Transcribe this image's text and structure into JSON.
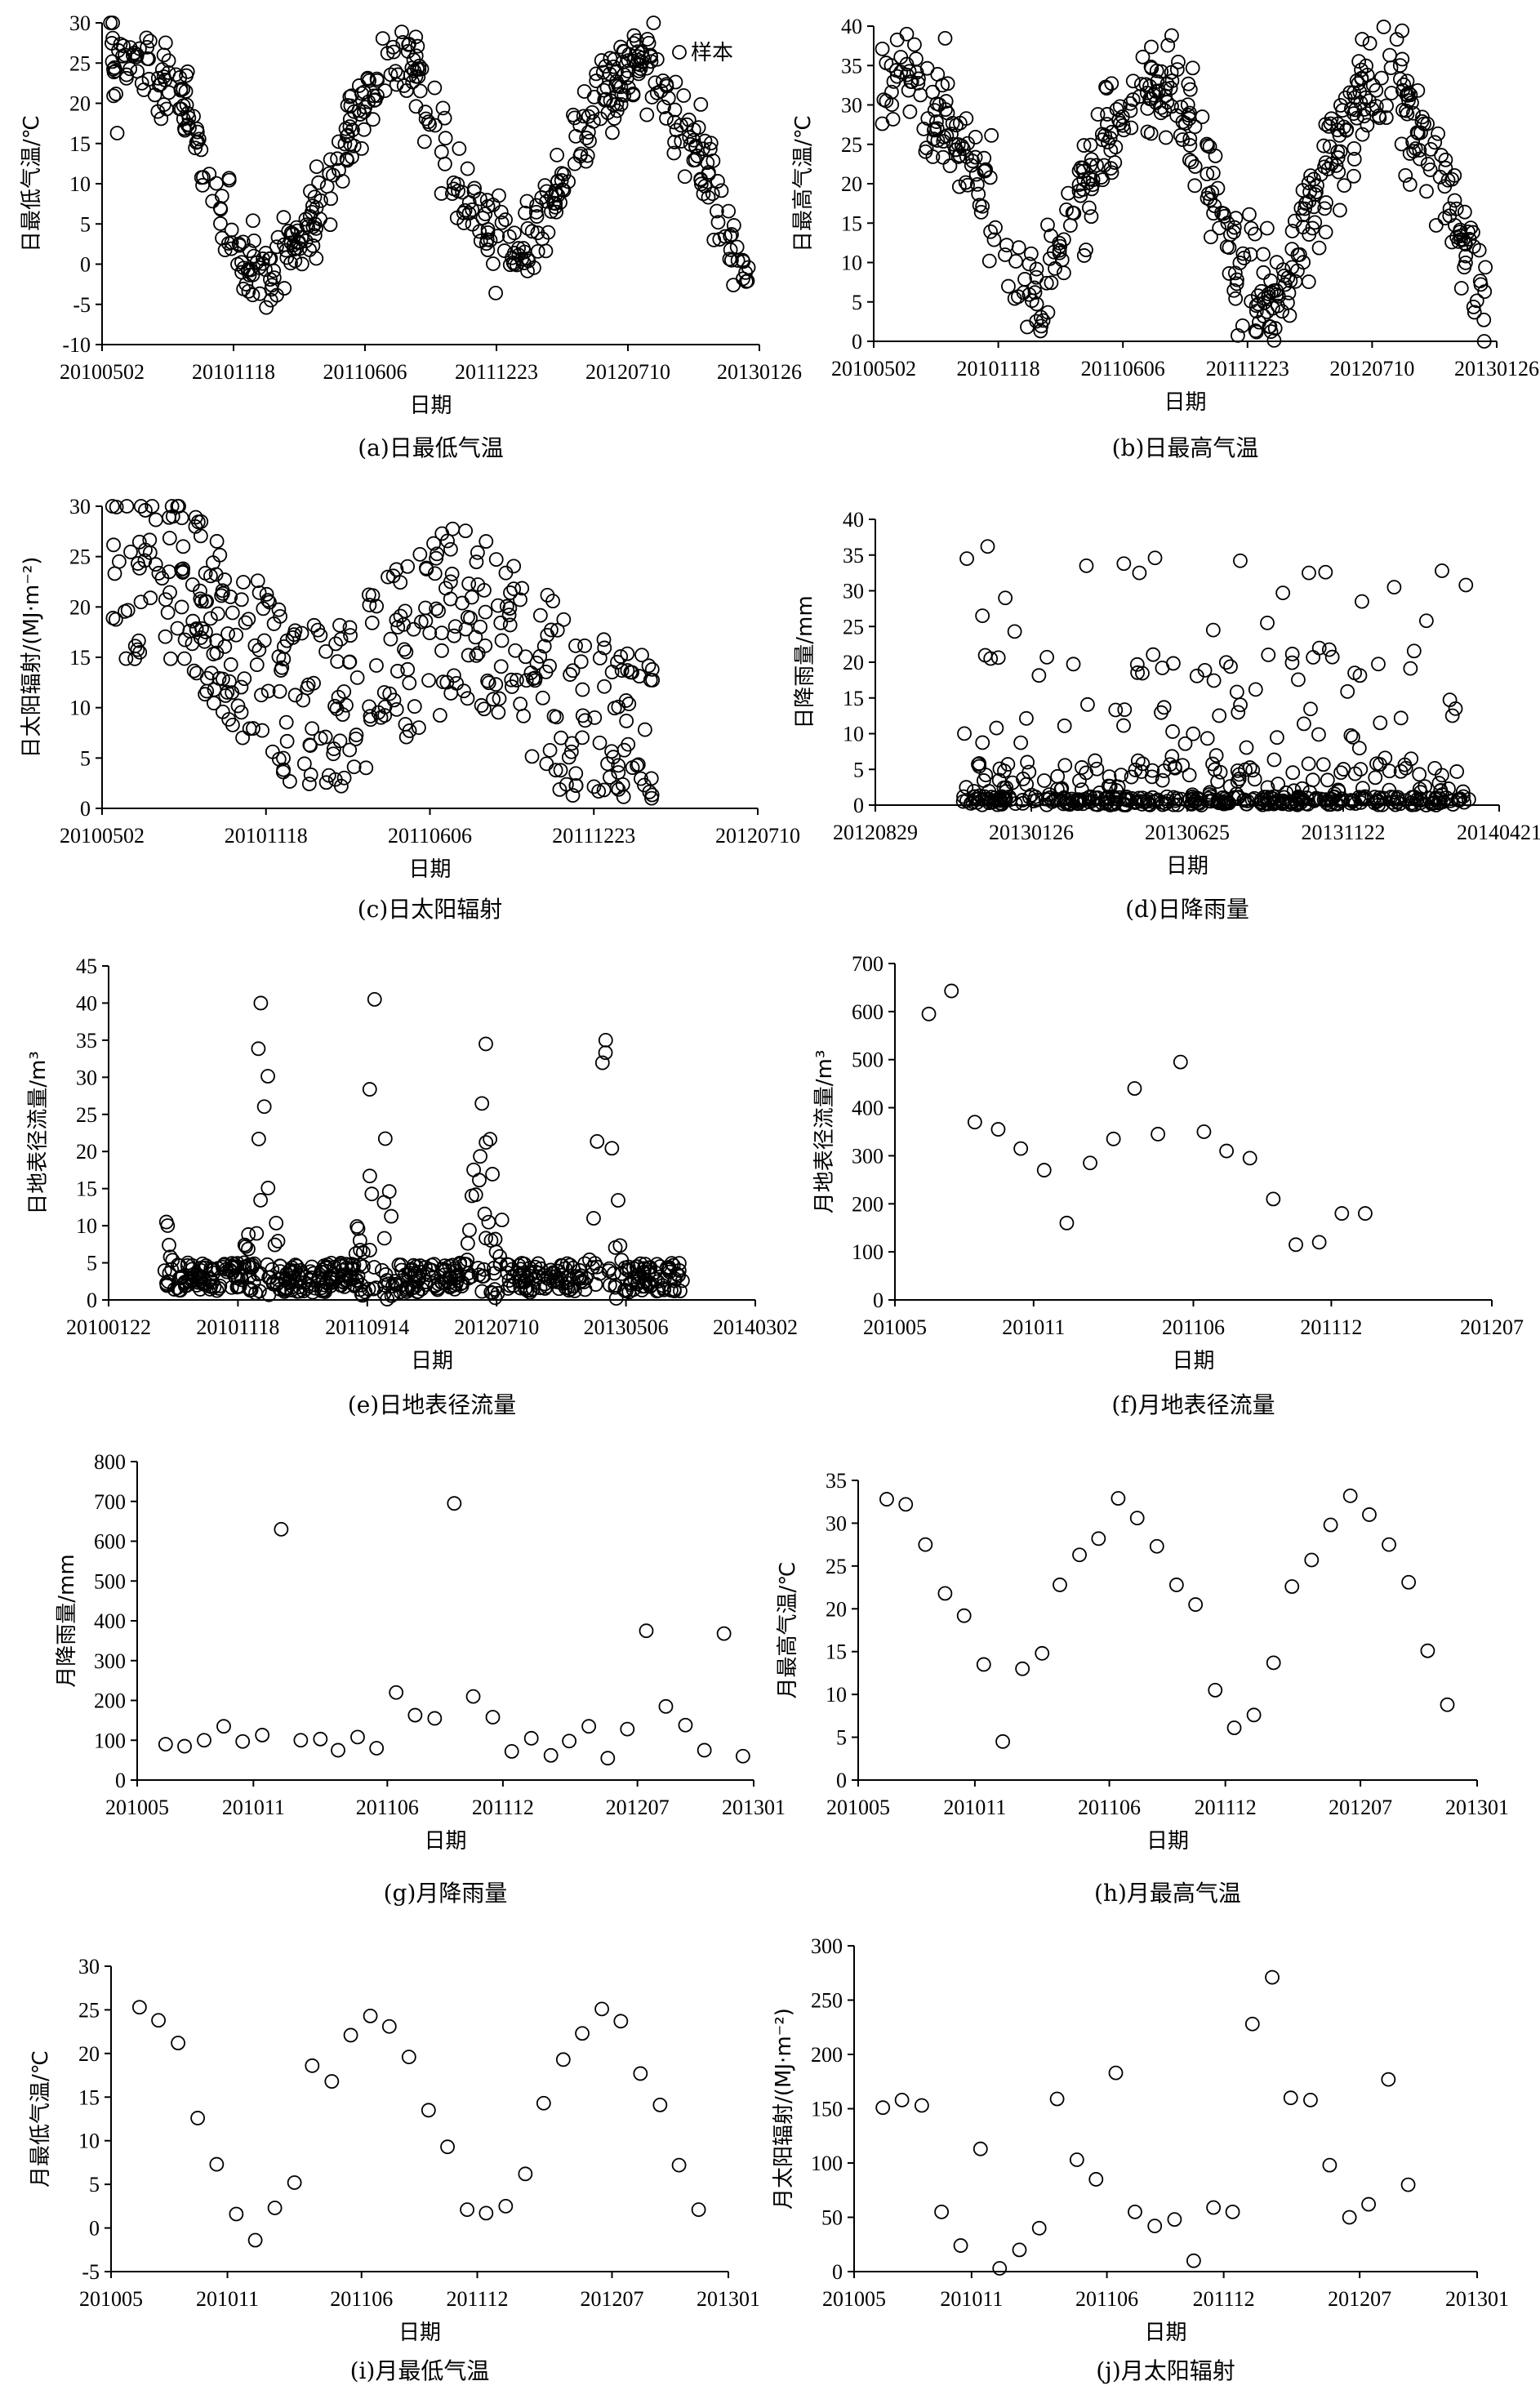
{
  "figure": {
    "panels": [
      {
        "id": "a",
        "caption": "(a)日最低气温",
        "ylabel": "日最低气温/℃",
        "xlabel": "日期",
        "ylim": [
          -10,
          30
        ],
        "yticks": [
          -10,
          -5,
          0,
          5,
          10,
          15,
          20,
          25,
          30
        ],
        "xticks": [
          "20100502",
          "20101118",
          "20110606",
          "20111223",
          "20120710",
          "20130126"
        ],
        "legend": "样本"
      },
      {
        "id": "b",
        "caption": "(b)日最高气温",
        "ylabel": "日最高气温/℃",
        "xlabel": "日期",
        "ylim": [
          0,
          40
        ],
        "yticks": [
          0,
          5,
          10,
          15,
          20,
          25,
          30,
          35,
          40
        ],
        "xticks": [
          "20100502",
          "20101118",
          "20110606",
          "20111223",
          "20120710",
          "20130126"
        ]
      },
      {
        "id": "c",
        "caption": "(c)日太阳辐射",
        "ylabel": "日太阳辐射/(MJ·m⁻²)",
        "xlabel": "日期",
        "ylim": [
          0,
          30
        ],
        "yticks": [
          0,
          5,
          10,
          15,
          20,
          25,
          30
        ],
        "xticks": [
          "20100502",
          "20101118",
          "20110606",
          "20111223",
          "20120710"
        ]
      },
      {
        "id": "d",
        "caption": "(d)日降雨量",
        "ylabel": "日降雨量/mm",
        "xlabel": "日期",
        "ylim": [
          0,
          40
        ],
        "yticks": [
          0,
          5,
          10,
          15,
          20,
          25,
          30,
          35,
          40
        ],
        "xticks": [
          "20120829",
          "20130126",
          "20130625",
          "20131122",
          "20140421"
        ]
      },
      {
        "id": "e",
        "caption": "(e)日地表径流量",
        "ylabel": "日地表径流量/m³",
        "xlabel": "日期",
        "ylim": [
          0,
          45
        ],
        "yticks": [
          0,
          5,
          10,
          15,
          20,
          25,
          30,
          35,
          40,
          45
        ],
        "xticks": [
          "20100122",
          "20101118",
          "20110914",
          "20120710",
          "20130506",
          "20140302"
        ]
      },
      {
        "id": "f",
        "caption": "(f)月地表径流量",
        "ylabel": "月地表径流量/m³",
        "xlabel": "日期",
        "ylim": [
          0,
          700
        ],
        "yticks": [
          0,
          100,
          200,
          300,
          400,
          500,
          600,
          700
        ],
        "xticks": [
          "201005",
          "201011",
          "201106",
          "201112",
          "201207"
        ]
      },
      {
        "id": "g",
        "caption": "(g)月降雨量",
        "ylabel": "月降雨量/mm",
        "xlabel": "日期",
        "ylim": [
          0,
          800
        ],
        "yticks": [
          0,
          100,
          200,
          300,
          400,
          500,
          600,
          700,
          800
        ],
        "xticks": [
          "201005",
          "201011",
          "201106",
          "201112",
          "201207",
          "201301"
        ]
      },
      {
        "id": "h",
        "caption": "(h)月最高气温",
        "ylabel": "月最高气温/℃",
        "xlabel": "日期",
        "ylim": [
          0,
          35
        ],
        "yticks": [
          0,
          5,
          10,
          15,
          20,
          25,
          30,
          35
        ],
        "xticks": [
          "201005",
          "201011",
          "201106",
          "201112",
          "201207",
          "201301"
        ]
      },
      {
        "id": "i",
        "caption": "(i)月最低气温",
        "ylabel": "月最低气温/℃",
        "xlabel": "日期",
        "ylim": [
          -5,
          30
        ],
        "yticks": [
          -5,
          0,
          5,
          10,
          15,
          20,
          25,
          30
        ],
        "xticks": [
          "201005",
          "201011",
          "201106",
          "201112",
          "201207",
          "201301"
        ]
      },
      {
        "id": "j",
        "caption": "(j)月太阳辐射",
        "ylabel": "月太阳辐射/(MJ·m⁻²)",
        "xlabel": "日期",
        "ylim": [
          0,
          300
        ],
        "yticks": [
          0,
          50,
          100,
          150,
          200,
          250,
          300
        ],
        "xticks": [
          "201005",
          "201011",
          "201106",
          "201112",
          "201207",
          "201301"
        ]
      }
    ]
  },
  "chart_data": [
    {
      "id": "a",
      "type": "scatter",
      "title": "(a)日最低气温",
      "xlabel": "日期",
      "ylabel": "日最低气温/℃",
      "ylim": [
        -10,
        30
      ],
      "x_range": [
        "2010-05-02",
        "2013-01-26"
      ],
      "series": [
        {
          "name": "样本",
          "seasonal": {
            "x_start": "2010-05-14",
            "x_end": "2013-01-10",
            "count": 520,
            "anchors_x": [
              "2010-05-14",
              "2010-07-01",
              "2010-09-01",
              "2010-10-15",
              "2010-12-10",
              "2011-01-15",
              "2011-03-15",
              "2011-05-15",
              "2011-07-15",
              "2011-08-20",
              "2011-10-01",
              "2011-11-15",
              "2012-01-01",
              "2012-02-15",
              "2012-04-01",
              "2012-06-01",
              "2012-07-15",
              "2012-08-20",
              "2012-10-01",
              "2012-11-15",
              "2013-01-10"
            ],
            "anchors_y": [
              25,
              25,
              20,
              10,
              -1,
              -2,
              5,
              17,
              24,
              25,
              15,
              6,
              3,
              3,
              10,
              21,
              25,
              24,
              17,
              10,
              -2
            ],
            "spread": 2.5
          }
        }
      ]
    },
    {
      "id": "b",
      "type": "scatter",
      "title": "(b)日最高气温",
      "xlabel": "日期",
      "ylabel": "日最高气温/℃",
      "ylim": [
        0,
        40
      ],
      "x_range": [
        "2010-05-02",
        "2013-01-26"
      ],
      "series": [
        {
          "seasonal": {
            "x_start": "2010-05-14",
            "x_end": "2013-01-10",
            "count": 520,
            "anchors_x": [
              "2010-05-14",
              "2010-07-01",
              "2010-09-01",
              "2010-10-15",
              "2010-12-10",
              "2011-01-15",
              "2011-03-15",
              "2011-05-15",
              "2011-07-15",
              "2011-08-20",
              "2011-10-01",
              "2011-11-15",
              "2012-01-01",
              "2012-02-15",
              "2012-04-01",
              "2012-06-01",
              "2012-07-15",
              "2012-08-20",
              "2012-10-01",
              "2012-11-15",
              "2013-01-10"
            ],
            "anchors_y": [
              34,
              33,
              27,
              20,
              8,
              5,
              14,
              25,
              32,
              33,
              25,
              15,
              6,
              6,
              18,
              27,
              33,
              32,
              26,
              17,
              5
            ],
            "spread": 3.5
          }
        }
      ]
    },
    {
      "id": "c",
      "type": "scatter",
      "title": "(c)日太阳辐射",
      "xlabel": "日期",
      "ylabel": "日太阳辐射/(MJ·m⁻²)",
      "ylim": [
        0,
        30
      ],
      "x_range": [
        "2010-05-02",
        "2012-07-10"
      ],
      "series": [
        {
          "cloud": {
            "x_start": "2010-05-14",
            "x_end": "2012-03-05",
            "count": 420,
            "anchors_x": [
              "2010-05-14",
              "2010-07-15",
              "2010-10-01",
              "2010-12-15",
              "2011-03-01",
              "2011-05-15",
              "2011-07-15",
              "2011-09-15",
              "2011-12-01",
              "2012-03-05"
            ],
            "anchors_y": [
              23,
              24,
              17,
              11,
              11,
              16,
              20,
              16,
              9,
              7
            ],
            "spread": 7
          }
        }
      ]
    },
    {
      "id": "d",
      "type": "scatter",
      "title": "(d)日降雨量",
      "xlabel": "日期",
      "ylabel": "日降雨量/mm",
      "ylim": [
        0,
        40
      ],
      "x_range": [
        "2012-08-29",
        "2014-04-21"
      ],
      "series": [
        {
          "rain": {
            "x_start": "2012-11-20",
            "x_end": "2014-03-25",
            "count": 480,
            "peaks_x": [
              "2012-11-25",
              "2012-12-10",
              "2012-12-15",
              "2013-01-01",
              "2013-01-10",
              "2013-02-10",
              "2013-03-20",
              "2013-04-25",
              "2013-05-10",
              "2013-05-25",
              "2013-06-01",
              "2013-07-20",
              "2013-08-15",
              "2013-09-10",
              "2013-09-25",
              "2013-10-20",
              "2013-11-05",
              "2013-12-10",
              "2014-01-10",
              "2014-02-10",
              "2014-02-25",
              "2014-03-10",
              "2014-03-20"
            ],
            "peaks_y": [
              34.5,
              26.5,
              36.2,
              29,
              24.3,
              20.7,
              33.5,
              33.8,
              32.5,
              34.6,
              19.2,
              24.5,
              34.2,
              25.5,
              29.7,
              32.5,
              32.6,
              28.5,
              30.5,
              25.8,
              32.8,
              13.5,
              30.8
            ]
          }
        }
      ]
    },
    {
      "id": "e",
      "type": "scatter",
      "title": "(e)日地表径流量",
      "xlabel": "日期",
      "ylabel": "日地表径流量/m³",
      "ylim": [
        0,
        45
      ],
      "x_range": [
        "2010-01-22",
        "2014-03-02"
      ],
      "series": [
        {
          "runoff": {
            "x_start": "2010-06-01",
            "x_end": "2013-09-20",
            "count": 560,
            "bursts_x": [
              "2010-06-05",
              "2011-01-10",
              "2011-10-01",
              "2012-06-15",
              "2013-03-20"
            ],
            "bursts_y": [
              10.5,
              40,
              40.5,
              34.5,
              35
            ]
          }
        }
      ]
    },
    {
      "id": "f",
      "type": "scatter",
      "title": "(f)月地表径流量",
      "xlabel": "日期",
      "ylabel": "月地表径流量/m³",
      "ylim": [
        0,
        700
      ],
      "x_range": [
        "2010-05",
        "2012-07"
      ],
      "x": [
        "2010-06",
        "2010-07",
        "2010-08",
        "2010-09",
        "2010-10",
        "2010-11",
        "2010-12",
        "2011-01",
        "2011-02",
        "2011-03",
        "2011-04",
        "2011-05",
        "2011-06",
        "2011-07",
        "2011-08",
        "2011-09",
        "2011-10",
        "2011-11",
        "2011-12",
        "2012-01"
      ],
      "y": [
        595,
        643,
        370,
        355,
        315,
        270,
        160,
        285,
        335,
        440,
        345,
        495,
        350,
        310,
        295,
        210,
        115,
        120,
        180,
        180
      ]
    },
    {
      "id": "g",
      "type": "scatter",
      "title": "(g)月降雨量",
      "xlabel": "日期",
      "ylabel": "月降雨量/mm",
      "ylim": [
        0,
        800
      ],
      "x_range": [
        "2010-05",
        "2013-01"
      ],
      "x": [
        "2010-06",
        "2010-07",
        "2010-08",
        "2010-09",
        "2010-10",
        "2010-11",
        "2010-12",
        "2011-01",
        "2011-02",
        "2011-03",
        "2011-04",
        "2011-05",
        "2011-06",
        "2011-07",
        "2011-08",
        "2011-09",
        "2011-10",
        "2011-11",
        "2011-12",
        "2012-01",
        "2012-02",
        "2012-03",
        "2012-04",
        "2012-05",
        "2012-06",
        "2012-07",
        "2012-08",
        "2012-09",
        "2012-10",
        "2012-11",
        "2012-12"
      ],
      "y": [
        90,
        85,
        100,
        135,
        97,
        113,
        630,
        100,
        103,
        75,
        108,
        80,
        220,
        163,
        155,
        695,
        210,
        158,
        72,
        105,
        62,
        98,
        135,
        55,
        128,
        375,
        185,
        138,
        75,
        368,
        60
      ]
    },
    {
      "id": "h",
      "type": "scatter",
      "title": "(h)月最高气温",
      "xlabel": "日期",
      "ylabel": "月最高气温/℃",
      "ylim": [
        0,
        35
      ],
      "x_range": [
        "2010-05",
        "2013-01"
      ],
      "x": [
        "2010-06",
        "2010-07",
        "2010-08",
        "2010-09",
        "2010-10",
        "2010-11",
        "2010-12",
        "2011-01",
        "2011-02",
        "2011-03",
        "2011-04",
        "2011-05",
        "2011-06",
        "2011-07",
        "2011-08",
        "2011-09",
        "2011-10",
        "2011-11",
        "2011-12",
        "2012-01",
        "2012-02",
        "2012-03",
        "2012-04",
        "2012-05",
        "2012-06",
        "2012-07",
        "2012-08",
        "2012-09",
        "2012-10",
        "2012-11"
      ],
      "y": [
        32.8,
        32.2,
        27.5,
        21.8,
        19.2,
        13.5,
        4.5,
        13,
        14.8,
        22.8,
        26.3,
        28.2,
        32.9,
        30.6,
        27.3,
        22.8,
        20.5,
        10.5,
        6.1,
        7.6,
        13.7,
        22.6,
        25.7,
        29.8,
        33.2,
        31,
        27.5,
        23.1,
        15.1,
        8.8
      ]
    },
    {
      "id": "i",
      "type": "scatter",
      "title": "(i)月最低气温",
      "xlabel": "日期",
      "ylabel": "月最低气温/℃",
      "ylim": [
        -5,
        30
      ],
      "x_range": [
        "2010-05",
        "2013-01"
      ],
      "x": [
        "2010-06",
        "2010-07",
        "2010-08",
        "2010-09",
        "2010-10",
        "2010-11",
        "2010-12",
        "2011-01",
        "2011-02",
        "2011-03",
        "2011-04",
        "2011-05",
        "2011-06",
        "2011-07",
        "2011-08",
        "2011-09",
        "2011-10",
        "2011-11",
        "2011-12",
        "2012-01",
        "2012-02",
        "2012-03",
        "2012-04",
        "2012-05",
        "2012-06",
        "2012-07",
        "2012-08",
        "2012-09",
        "2012-10",
        "2012-11"
      ],
      "y": [
        25.3,
        23.8,
        21.2,
        12.6,
        7.3,
        1.6,
        -1.4,
        2.3,
        5.2,
        18.6,
        16.8,
        22.1,
        24.3,
        23.1,
        19.6,
        13.5,
        9.3,
        2.1,
        1.7,
        2.5,
        6.2,
        14.3,
        19.3,
        22.3,
        25.1,
        23.7,
        17.7,
        14.1,
        7.2,
        2.1
      ]
    },
    {
      "id": "j",
      "type": "scatter",
      "title": "(j)月太阳辐射",
      "xlabel": "日期",
      "ylabel": "月太阳辐射/(MJ·m⁻²)",
      "ylim": [
        0,
        300
      ],
      "x_range": [
        "2010-05",
        "2013-01"
      ],
      "x": [
        "2010-06",
        "2010-07",
        "2010-08",
        "2010-09",
        "2010-10",
        "2010-11",
        "2010-12",
        "2011-01",
        "2011-02",
        "2011-03",
        "2011-04",
        "2011-05",
        "2011-06",
        "2011-07",
        "2011-08",
        "2011-09",
        "2011-10",
        "2011-11",
        "2011-12",
        "2012-01",
        "2012-02",
        "2012-03",
        "2012-04",
        "2012-05",
        "2012-06",
        "2012-07",
        "2012-08",
        "2012-09"
      ],
      "y": [
        151,
        158,
        153,
        55,
        24,
        113,
        3,
        20,
        40,
        159,
        103,
        85,
        183,
        55,
        42,
        48,
        10,
        59,
        55,
        228,
        271,
        160,
        158,
        98,
        50,
        62,
        177,
        80
      ]
    }
  ]
}
